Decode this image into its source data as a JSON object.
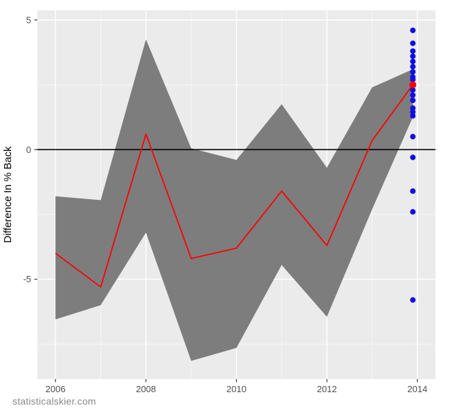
{
  "page": {
    "watermark": "statisticalskier.com"
  },
  "chart_data": {
    "type": "line",
    "title": "",
    "xlabel": "",
    "ylabel": "Difference In % Back",
    "xlim": [
      2005.6,
      2014.4
    ],
    "ylim": [
      -8.85,
      5.37
    ],
    "x_ticks": [
      2006,
      2008,
      2010,
      2012,
      2014
    ],
    "x_minor_ticks": [
      2007,
      2009,
      2011,
      2013
    ],
    "y_ticks": [
      5,
      0,
      -5
    ],
    "y_minor_ticks": [
      2.5,
      -2.5,
      -7.5
    ],
    "reference_line_y": 0,
    "grid": "on",
    "legend": "none",
    "series": [
      {
        "name": "confidence-ribbon",
        "type": "area",
        "x": [
          2006,
          2007,
          2008,
          2009,
          2010,
          2011,
          2012,
          2013,
          2013.9
        ],
        "upper": [
          -1.8,
          -1.95,
          4.25,
          0.05,
          -0.4,
          1.75,
          -0.7,
          2.4,
          3.1
        ],
        "lower": [
          -6.55,
          -6.0,
          -3.2,
          -8.15,
          -7.65,
          -4.45,
          -6.45,
          -2.3,
          1.25
        ]
      },
      {
        "name": "median-trend",
        "type": "line",
        "x": [
          2006,
          2007,
          2008,
          2009,
          2010,
          2011,
          2012,
          2013,
          2013.9
        ],
        "y": [
          -4.0,
          -5.3,
          0.6,
          -4.2,
          -3.8,
          -1.6,
          -3.7,
          0.35,
          2.5
        ]
      },
      {
        "name": "race-points",
        "type": "scatter",
        "x": [
          2013.9,
          2013.9,
          2013.9,
          2013.9,
          2013.9,
          2013.9,
          2013.9,
          2013.9,
          2013.9,
          2013.9,
          2013.9,
          2013.9,
          2013.9,
          2013.9,
          2013.9,
          2013.9,
          2013.9,
          2013.9,
          2013.9,
          2013.9
        ],
        "y": [
          4.6,
          4.1,
          3.8,
          3.6,
          3.4,
          3.2,
          3.0,
          2.8,
          2.7,
          2.3,
          2.1,
          1.9,
          1.6,
          1.45,
          1.3,
          0.5,
          -0.3,
          -1.6,
          -2.4,
          -5.8
        ]
      },
      {
        "name": "highlight-point",
        "type": "scatter",
        "x": [
          2013.9
        ],
        "y": [
          2.5
        ]
      }
    ],
    "colors": {
      "panel_background": "#ebebeb",
      "grid_major": "#ffffff",
      "grid_minor": "#f7f7f7",
      "ribbon": "#7d7d7d",
      "median_line": "#fe0000",
      "race_points": "#0f0fe0",
      "highlight_point": "#fe0000",
      "reference_line": "#000000",
      "tick_mark": "#333333",
      "tick_text": "#4d4d4d",
      "axis_title": "#000000",
      "watermark": "#898989"
    }
  }
}
